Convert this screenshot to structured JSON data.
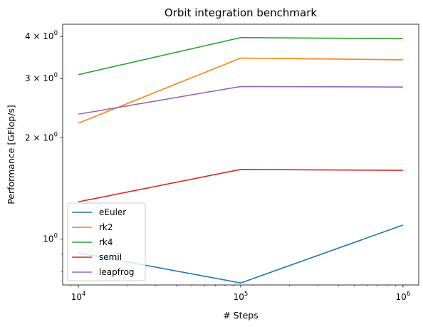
{
  "chart_data": {
    "type": "line",
    "title": "Orbit integration benchmark",
    "xlabel": "# Steps",
    "ylabel": "Performance [GFlop/s]",
    "xscale": "log",
    "yscale": "log",
    "xlim": [
      8000,
      1250000
    ],
    "ylim": [
      0.73,
      4.35
    ],
    "x": [
      10000,
      100000,
      1000000
    ],
    "x_ticks": [
      {
        "value": 10000,
        "base": "10",
        "exp": "4"
      },
      {
        "value": 100000,
        "base": "10",
        "exp": "5"
      },
      {
        "value": 1000000,
        "base": "10",
        "exp": "6"
      }
    ],
    "y_ticks": [
      {
        "value": 1,
        "mant": "",
        "base": "10",
        "exp": "0"
      },
      {
        "value": 2,
        "mant": "2 × ",
        "base": "10",
        "exp": "0"
      },
      {
        "value": 3,
        "mant": "3 × ",
        "base": "10",
        "exp": "0"
      },
      {
        "value": 4,
        "mant": "4 × ",
        "base": "10",
        "exp": "0"
      }
    ],
    "grid": false,
    "legend_position": "lower-left",
    "series": [
      {
        "name": "eEuler",
        "color": "#1f77b4",
        "values": [
          0.91,
          0.74,
          1.1
        ]
      },
      {
        "name": "rk2",
        "color": "#ff7f0e",
        "values": [
          2.21,
          3.45,
          3.41
        ]
      },
      {
        "name": "rk4",
        "color": "#2ca02c",
        "values": [
          3.08,
          3.97,
          3.94
        ]
      },
      {
        "name": "semiI",
        "color": "#d62728",
        "values": [
          1.29,
          1.61,
          1.6
        ]
      },
      {
        "name": "leapfrog",
        "color": "#9467bd",
        "values": [
          2.35,
          2.84,
          2.83
        ]
      }
    ]
  }
}
